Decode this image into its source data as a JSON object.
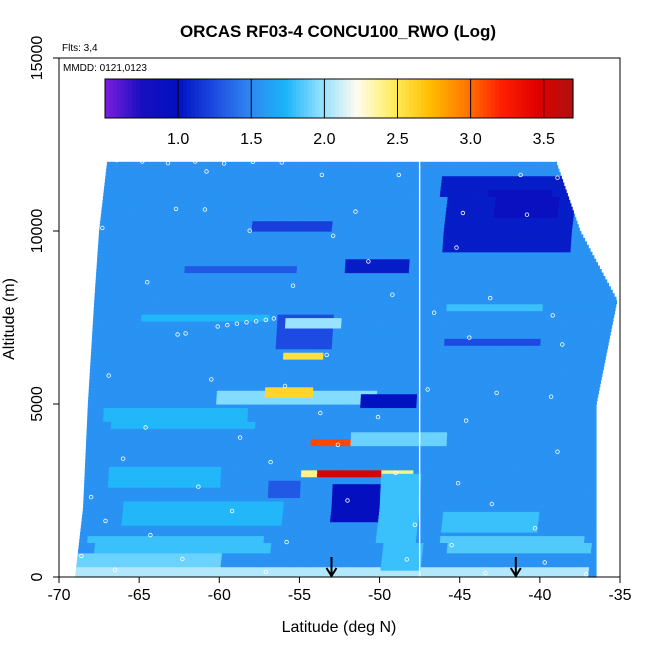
{
  "chart_data": {
    "type": "heatmap",
    "title": "ORCAS RF03-4 CONCU100_RWO (Log)",
    "annotations": {
      "flights": "Flts: 3,4",
      "dates": "MMDD: 0121,0123"
    },
    "xlabel": "Latitude (deg N)",
    "ylabel": "Altitude (m)",
    "xlim": [
      -70,
      -35
    ],
    "ylim": [
      0,
      15000
    ],
    "x_ticks": [
      -70,
      -65,
      -60,
      -55,
      -50,
      -45,
      -40,
      -35
    ],
    "y_ticks": [
      0,
      5000,
      10000,
      15000
    ],
    "colorbar": {
      "min": 0.5,
      "max": 3.7,
      "ticks": [
        1.0,
        1.5,
        2.0,
        2.5,
        3.0,
        3.5
      ],
      "tick_labels": [
        "1.0",
        "1.5",
        "2.0",
        "2.5",
        "3.0",
        "3.5"
      ],
      "colors": [
        "#7b1fe0",
        "#1a0fc0",
        "#0010c0",
        "#1c48e0",
        "#2f86f0",
        "#18b4f8",
        "#90e0ff",
        "#fffbf0",
        "#ffee60",
        "#ffbf00",
        "#ff7a00",
        "#ff2000",
        "#e00000",
        "#b01010"
      ]
    },
    "background_value": 1.55,
    "divider_latitude": -47.5,
    "arrow_latitudes": [
      -53.0,
      -41.5
    ],
    "coverage": [
      {
        "alt": 0,
        "lat_min": -69.0,
        "lat_max": -36.5
      },
      {
        "alt": 2000,
        "lat_min": -68.5,
        "lat_max": -36.5
      },
      {
        "alt": 5000,
        "lat_min": -68.2,
        "lat_max": -36.5
      },
      {
        "alt": 8000,
        "lat_min": -67.8,
        "lat_max": -35.2
      },
      {
        "alt": 10000,
        "lat_min": -67.5,
        "lat_max": -37.5
      },
      {
        "alt": 12000,
        "lat_min": -67.0,
        "lat_max": -39.0
      }
    ],
    "features": [
      {
        "lat_min": -69.0,
        "lat_max": -37.0,
        "alt_min": 0,
        "alt_max": 300,
        "value": 2.05
      },
      {
        "lat_min": -69.0,
        "lat_max": -60.0,
        "alt_min": 300,
        "alt_max": 700,
        "value": 1.9
      },
      {
        "lat_min": -68.0,
        "lat_max": -57.0,
        "alt_min": 700,
        "alt_max": 1200,
        "value": 1.8
      },
      {
        "lat_min": -46.0,
        "lat_max": -37.0,
        "alt_min": 700,
        "alt_max": 1200,
        "value": 1.85
      },
      {
        "lat_min": -66.0,
        "lat_max": -56.0,
        "alt_min": 1500,
        "alt_max": 2200,
        "value": 1.75
      },
      {
        "lat_min": -46.0,
        "lat_max": -40.0,
        "alt_min": 1300,
        "alt_max": 1900,
        "value": 1.8
      },
      {
        "lat_min": -67.0,
        "lat_max": -60.0,
        "alt_min": 2600,
        "alt_max": 3200,
        "value": 1.75
      },
      {
        "lat_min": -52.0,
        "lat_max": -46.0,
        "alt_min": 3800,
        "alt_max": 4200,
        "value": 1.9
      },
      {
        "lat_min": -67.0,
        "lat_max": -58.0,
        "alt_min": 4300,
        "alt_max": 4900,
        "value": 1.75
      },
      {
        "lat_min": -60.0,
        "lat_max": -50.0,
        "alt_min": 5050,
        "alt_max": 5350,
        "value": 1.95
      },
      {
        "lat_min": -57.0,
        "lat_max": -54.0,
        "alt_min": 5200,
        "alt_max": 5450,
        "value": 2.6
      },
      {
        "lat_min": -56.5,
        "lat_max": -53.0,
        "alt_min": 6600,
        "alt_max": 7600,
        "value": 1.25
      },
      {
        "lat_min": -56.0,
        "lat_max": -52.5,
        "alt_min": 7250,
        "alt_max": 7500,
        "value": 2.0
      },
      {
        "lat_min": -56.0,
        "lat_max": -53.5,
        "alt_min": 6300,
        "alt_max": 6500,
        "value": 2.55
      },
      {
        "lat_min": -52.0,
        "lat_max": -48.0,
        "alt_min": 8800,
        "alt_max": 9200,
        "value": 1.05
      },
      {
        "lat_min": -58.0,
        "lat_max": -53.0,
        "alt_min": 10000,
        "alt_max": 10300,
        "value": 1.2
      },
      {
        "lat_min": -46.0,
        "lat_max": -38.0,
        "alt_min": 9400,
        "alt_max": 11600,
        "value": 1.05
      },
      {
        "lat_min": -43.0,
        "lat_max": -39.0,
        "alt_min": 10400,
        "alt_max": 11200,
        "value": 0.9
      },
      {
        "lat_min": -51.0,
        "lat_max": -47.5,
        "alt_min": 4950,
        "alt_max": 5250,
        "value": 1.0
      },
      {
        "lat_min": -54.5,
        "lat_max": -52.0,
        "alt_min": 3800,
        "alt_max": 4000,
        "value": 3.1
      },
      {
        "lat_min": -55.0,
        "lat_max": -48.0,
        "alt_min": 2900,
        "alt_max": 3100,
        "value": 2.4
      },
      {
        "lat_min": -54.0,
        "lat_max": -50.0,
        "alt_min": 2880,
        "alt_max": 3060,
        "value": 3.5
      },
      {
        "lat_min": -53.0,
        "lat_max": -48.5,
        "alt_min": 1600,
        "alt_max": 2700,
        "value": 0.95
      },
      {
        "lat_min": -50.0,
        "lat_max": -47.5,
        "alt_min": 200,
        "alt_max": 3000,
        "value": 1.8
      },
      {
        "lat_min": -57.0,
        "lat_max": -55.0,
        "alt_min": 2300,
        "alt_max": 2800,
        "value": 1.3
      },
      {
        "lat_min": -46.0,
        "lat_max": -40.0,
        "alt_min": 6700,
        "alt_max": 6900,
        "value": 1.25
      },
      {
        "lat_min": -46.0,
        "lat_max": -40.0,
        "alt_min": 7700,
        "alt_max": 7900,
        "value": 1.8
      },
      {
        "lat_min": -65.0,
        "lat_max": -57.0,
        "alt_min": 7400,
        "alt_max": 7600,
        "value": 1.75
      },
      {
        "lat_min": -62.0,
        "lat_max": -55.0,
        "alt_min": 8800,
        "alt_max": 9000,
        "value": 1.3
      }
    ],
    "dots": [
      [
        -66.4,
        12050
      ],
      [
        -64.8,
        12010
      ],
      [
        -63.2,
        11960
      ],
      [
        -61.5,
        12010
      ],
      [
        -59.7,
        11950
      ],
      [
        -57.9,
        12000
      ],
      [
        -56.1,
        11980
      ],
      [
        -60.8,
        11720
      ],
      [
        -53.6,
        11620
      ],
      [
        -48.8,
        11620
      ],
      [
        -41.2,
        11620
      ],
      [
        -38.9,
        11540
      ],
      [
        -62.7,
        10640
      ],
      [
        -60.9,
        10620
      ],
      [
        -51.5,
        10560
      ],
      [
        -44.8,
        10520
      ],
      [
        -40.8,
        10470
      ],
      [
        -67.3,
        10090
      ],
      [
        -58.1,
        10010
      ],
      [
        -52.9,
        9860
      ],
      [
        -45.2,
        9520
      ],
      [
        -50.7,
        9120
      ],
      [
        -64.5,
        8520
      ],
      [
        -55.4,
        8420
      ],
      [
        -49.2,
        8160
      ],
      [
        -43.1,
        8060
      ],
      [
        -46.6,
        7640
      ],
      [
        -39.2,
        7560
      ],
      [
        -60.1,
        7240
      ],
      [
        -59.5,
        7280
      ],
      [
        -58.9,
        7320
      ],
      [
        -58.3,
        7360
      ],
      [
        -57.7,
        7390
      ],
      [
        -57.1,
        7430
      ],
      [
        -56.6,
        7470
      ],
      [
        -62.6,
        7010
      ],
      [
        -62.1,
        7040
      ],
      [
        -44.4,
        6920
      ],
      [
        -38.6,
        6720
      ],
      [
        -53.3,
        6420
      ],
      [
        -66.9,
        5820
      ],
      [
        -60.5,
        5710
      ],
      [
        -55.9,
        5520
      ],
      [
        -47.0,
        5420
      ],
      [
        -42.7,
        5320
      ],
      [
        -39.3,
        5210
      ],
      [
        -53.7,
        4740
      ],
      [
        -50.1,
        4620
      ],
      [
        -44.6,
        4520
      ],
      [
        -64.6,
        4320
      ],
      [
        -58.7,
        4030
      ],
      [
        -52.6,
        3820
      ],
      [
        -38.9,
        3620
      ],
      [
        -66.0,
        3420
      ],
      [
        -56.8,
        3320
      ],
      [
        -49.0,
        3010
      ],
      [
        -45.1,
        2710
      ],
      [
        -61.3,
        2610
      ],
      [
        -68.0,
        2310
      ],
      [
        -52.0,
        2210
      ],
      [
        -43.0,
        2110
      ],
      [
        -59.2,
        1910
      ],
      [
        -67.1,
        1620
      ],
      [
        -47.8,
        1510
      ],
      [
        -40.3,
        1410
      ],
      [
        -64.3,
        1210
      ],
      [
        -55.8,
        1010
      ],
      [
        -45.5,
        920
      ],
      [
        -68.6,
        610
      ],
      [
        -62.3,
        520
      ],
      [
        -48.3,
        510
      ],
      [
        -39.7,
        420
      ],
      [
        -66.5,
        210
      ],
      [
        -57.1,
        150
      ],
      [
        -43.4,
        110
      ],
      [
        -37.1,
        80
      ]
    ]
  }
}
